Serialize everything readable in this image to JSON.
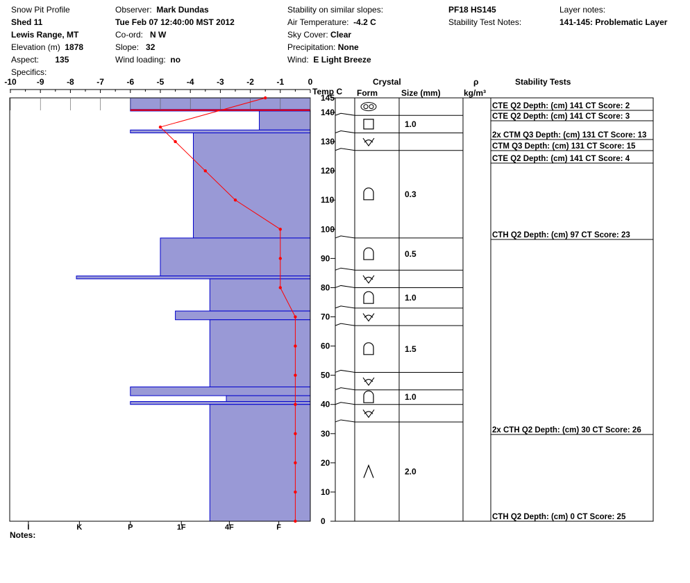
{
  "header": {
    "profile_label": "Snow Pit Profile",
    "location_name": "Shed 11",
    "range": "Lewis Range, MT",
    "elevation_label": "Elevation (m)",
    "elevation_value": "1878",
    "aspect_label": "Aspect:",
    "aspect_value": "135",
    "specifics_label": "Specifics:",
    "observer_label": "Observer:",
    "observer_value": "Mark Dundas",
    "datetime": "Tue Feb 07 12:40:00 MST 2012",
    "coord_label": "Co-ord:",
    "coord_value": "N  W",
    "slope_label": "Slope:",
    "slope_value": "32",
    "wind_loading_label": "Wind loading:",
    "wind_loading_value": "no",
    "stability_label": "Stability on similar slopes:",
    "air_temp_label": "Air Temperature:",
    "air_temp_value": "-4.2 C",
    "sky_label": "Sky Cover:",
    "sky_value": "Clear",
    "precip_label": "Precipitation:",
    "precip_value": "None",
    "wind_label": "Wind:",
    "wind_value": "E Light Breeze",
    "pit_id": "PF18 HS145",
    "stability_notes_label": "Stability Test Notes:",
    "layer_notes_label": "Layer notes:",
    "layer_note_value": "141-145: Problematic Layer"
  },
  "notes_label": "Notes:",
  "columns": {
    "temp": "Temp C",
    "crystal": "Crystal",
    "form": "Form",
    "size": "Size (mm)",
    "rho": "ρ",
    "density_unit": "kg/m³",
    "stability": "Stability Tests"
  },
  "colors": {
    "hardness_fill": "#9999d6",
    "hardness_stroke": "#0000cc",
    "temp_line": "#ff0000"
  },
  "chart_data": {
    "type": "line",
    "temp_axis": {
      "ticks": [
        "-10",
        "-9",
        "-8",
        "-7",
        "-6",
        "-5",
        "-4",
        "-3",
        "-2",
        "-1",
        "0"
      ],
      "range": [
        -10,
        0
      ]
    },
    "height_axis": {
      "ticks": [
        "145",
        "140",
        "130",
        "120",
        "110",
        "100",
        "90",
        "80",
        "70",
        "60",
        "50",
        "40",
        "30",
        "20",
        "10",
        "0"
      ],
      "values": [
        145,
        140,
        130,
        120,
        110,
        100,
        90,
        80,
        70,
        60,
        50,
        40,
        30,
        20,
        10,
        0
      ],
      "range": [
        0,
        145
      ]
    },
    "hardness_axis": {
      "labels": [
        "I",
        "K",
        "P",
        "1F",
        "4F",
        "F"
      ],
      "values": [
        -9.4,
        -7.7,
        -6,
        -4.3,
        -2.7,
        -1.05
      ]
    },
    "temperature_profile": [
      {
        "h": 145,
        "t": -1.5
      },
      {
        "h": 135,
        "t": -5
      },
      {
        "h": 130,
        "t": -4.5
      },
      {
        "h": 120,
        "t": -3.5
      },
      {
        "h": 110,
        "t": -2.5
      },
      {
        "h": 100,
        "t": -1
      },
      {
        "h": 90,
        "t": -1
      },
      {
        "h": 80,
        "t": -1
      },
      {
        "h": 70,
        "t": -0.5
      },
      {
        "h": 60,
        "t": -0.5
      },
      {
        "h": 50,
        "t": -0.5
      },
      {
        "h": 40,
        "t": -0.5
      },
      {
        "h": 30,
        "t": -0.5
      },
      {
        "h": 20,
        "t": -0.5
      },
      {
        "h": 10,
        "t": -0.5
      },
      {
        "h": 0,
        "t": -0.5
      }
    ],
    "hardness_layers": [
      {
        "top": 145,
        "bottom": 141,
        "hardness": -6
      },
      {
        "top": 141,
        "bottom": 140.5,
        "hardness": -6
      },
      {
        "top": 140.5,
        "bottom": 134,
        "hardness": -1.7
      },
      {
        "top": 134,
        "bottom": 133,
        "hardness": -6
      },
      {
        "top": 133,
        "bottom": 97,
        "hardness": -3.9
      },
      {
        "top": 97,
        "bottom": 84,
        "hardness": -5
      },
      {
        "top": 84,
        "bottom": 83,
        "hardness": -7.8
      },
      {
        "top": 83,
        "bottom": 72,
        "hardness": -3.35
      },
      {
        "top": 72,
        "bottom": 69,
        "hardness": -4.5
      },
      {
        "top": 69,
        "bottom": 46,
        "hardness": -3.35
      },
      {
        "top": 46,
        "bottom": 43,
        "hardness": -6
      },
      {
        "top": 43,
        "bottom": 41,
        "hardness": -2.8
      },
      {
        "top": 41,
        "bottom": 40,
        "hardness": -6
      },
      {
        "top": 40,
        "bottom": 0,
        "hardness": -3.35
      }
    ],
    "crystal_layers": [
      {
        "top": 145,
        "bottom": 139,
        "form": "rounded-pair",
        "size": ""
      },
      {
        "top": 139,
        "bottom": 133,
        "form": "square",
        "size": "1.0"
      },
      {
        "top": 133,
        "bottom": 127,
        "form": "depth-hoar",
        "size": ""
      },
      {
        "top": 127,
        "bottom": 97,
        "form": "rounding-faceted",
        "size": "0.3"
      },
      {
        "top": 97,
        "bottom": 86,
        "form": "rounding-faceted",
        "size": "0.5"
      },
      {
        "top": 86,
        "bottom": 80,
        "form": "depth-hoar",
        "size": ""
      },
      {
        "top": 80,
        "bottom": 73,
        "form": "rounding-faceted",
        "size": "1.0"
      },
      {
        "top": 73,
        "bottom": 67,
        "form": "depth-hoar",
        "size": ""
      },
      {
        "top": 67,
        "bottom": 51,
        "form": "rounding-faceted",
        "size": "1.5"
      },
      {
        "top": 51,
        "bottom": 45,
        "form": "depth-hoar",
        "size": ""
      },
      {
        "top": 45,
        "bottom": 40,
        "form": "rounding-faceted",
        "size": "1.0"
      },
      {
        "top": 40,
        "bottom": 34,
        "form": "depth-hoar",
        "size": ""
      },
      {
        "top": 34,
        "bottom": 0,
        "form": "peak",
        "size": "2.0"
      }
    ],
    "stability_tests": [
      {
        "h": 141,
        "text": "CTE Q2 Depth: (cm) 141 CT Score: 2"
      },
      {
        "h": 141,
        "text": "CTE Q2 Depth: (cm) 141 CT Score: 3"
      },
      {
        "h": 131,
        "text": "2x CTM Q3 Depth: (cm) 131 CT Score: 13"
      },
      {
        "h": 131,
        "text": "CTM Q3 Depth: (cm) 131 CT Score: 15"
      },
      {
        "h": 141,
        "text": "CTE Q2 Depth: (cm) 141 CT Score: 4"
      },
      {
        "h": 97,
        "text": "CTH Q2 Depth: (cm) 97 CT Score: 23"
      },
      {
        "h": 30,
        "text": "2x CTH Q2 Depth: (cm) 30 CT Score: 26"
      },
      {
        "h": 0,
        "text": "CTH Q2 Depth: (cm) 0 CT Score: 25"
      }
    ]
  }
}
